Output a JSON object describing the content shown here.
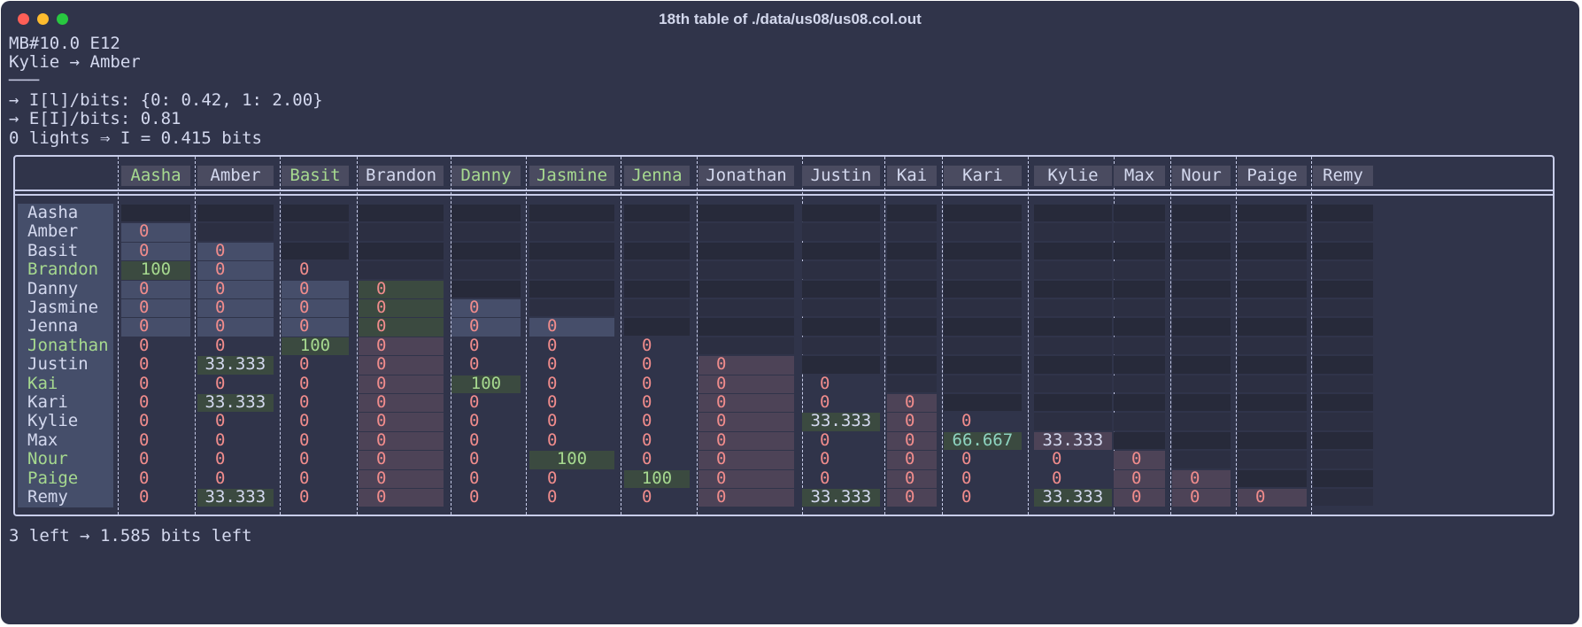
{
  "window": {
    "title": "18th table of ./data/us08/us08.col.out"
  },
  "lines": [
    "MB#10.0 E12",
    "Kylie → Amber",
    "───",
    "→ I[l]/bits: {0: 0.42, 1: 2.00}",
    "→ E[I]/bits: 0.81",
    "0 lights ⇒ I = 0.415 bits"
  ],
  "footer": "3 left → 1.585 bits left",
  "colors": {
    "background": "#30344a",
    "text": "#d3d8ee",
    "green_text": "#a6d98f",
    "zero": "#f08c8c",
    "teal": "#8ed4c0",
    "green_hl": "#3b4a40",
    "blue_hl": "#464e6a",
    "mauve_hl": "#4d4357"
  },
  "table": {
    "columns": [
      "Aasha",
      "Amber",
      "Basit",
      "Brandon",
      "Danny",
      "Jasmine",
      "Jenna",
      "Jonathan",
      "Justin",
      "Kai",
      "Kari",
      "Kylie",
      "Max",
      "Nour",
      "Paige",
      "Remy"
    ],
    "green_columns": [
      0,
      2,
      4,
      5,
      6
    ],
    "rows": [
      "Aasha",
      "Amber",
      "Basit",
      "Brandon",
      "Danny",
      "Jasmine",
      "Jenna",
      "Jonathan",
      "Justin",
      "Kai",
      "Kari",
      "Kylie",
      "Max",
      "Nour",
      "Paige",
      "Remy"
    ],
    "green_rows": [
      3,
      7,
      9,
      13,
      14
    ],
    "cells": [
      [],
      [
        "0"
      ],
      [
        "0",
        "0"
      ],
      [
        "100",
        "0",
        "0"
      ],
      [
        "0",
        "0",
        "0",
        "0"
      ],
      [
        "0",
        "0",
        "0",
        "0",
        "0"
      ],
      [
        "0",
        "0",
        "0",
        "0",
        "0",
        "0"
      ],
      [
        "0",
        "0",
        "100",
        "0",
        "0",
        "0",
        "0"
      ],
      [
        "0",
        "33.333",
        "0",
        "0",
        "0",
        "0",
        "0",
        "0"
      ],
      [
        "0",
        "0",
        "0",
        "0",
        "100",
        "0",
        "0",
        "0",
        "0"
      ],
      [
        "0",
        "33.333",
        "0",
        "0",
        "0",
        "0",
        "0",
        "0",
        "0",
        "0"
      ],
      [
        "0",
        "0",
        "0",
        "0",
        "0",
        "0",
        "0",
        "0",
        "33.333",
        "0",
        "0"
      ],
      [
        "0",
        "0",
        "0",
        "0",
        "0",
        "0",
        "0",
        "0",
        "0",
        "0",
        "66.667",
        "33.333"
      ],
      [
        "0",
        "0",
        "0",
        "0",
        "0",
        "100",
        "0",
        "0",
        "0",
        "0",
        "0",
        "0",
        "0"
      ],
      [
        "0",
        "0",
        "0",
        "0",
        "0",
        "0",
        "100",
        "0",
        "0",
        "0",
        "0",
        "0",
        "0",
        "0"
      ],
      [
        "0",
        "33.333",
        "0",
        "0",
        "0",
        "0",
        "0",
        "0",
        "33.333",
        "0",
        "0",
        "33.333",
        "0",
        "0",
        "0"
      ]
    ]
  }
}
